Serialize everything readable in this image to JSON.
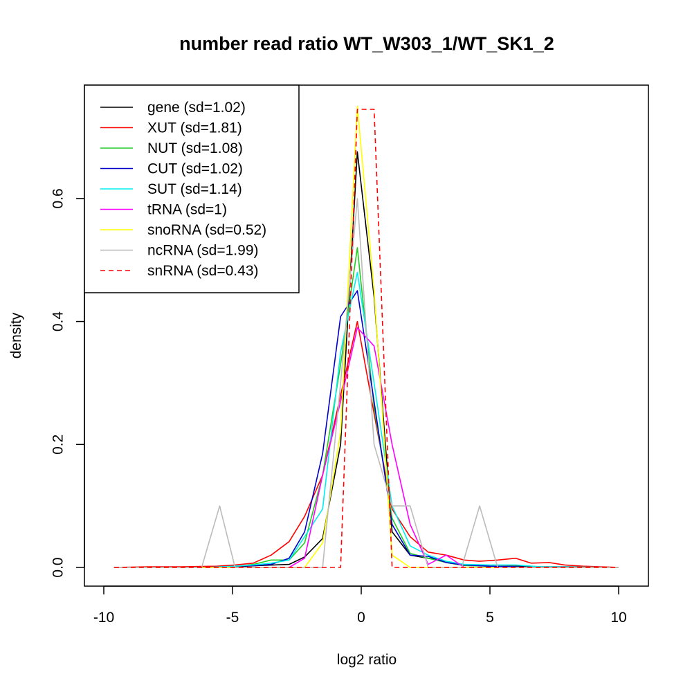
{
  "chart_data": {
    "type": "line",
    "title": "number read ratio WT_W303_1/WT_SK1_2",
    "xlabel": "log2 ratio",
    "ylabel": "density",
    "xlim": [
      -10,
      10
    ],
    "ylim": [
      0,
      0.7
    ],
    "xticks": [
      -10,
      -5,
      0,
      5,
      10
    ],
    "xtick_labels": [
      "-10",
      "-5",
      "0",
      "5",
      "10"
    ],
    "yticks": [
      0.0,
      0.2,
      0.4,
      0.6
    ],
    "ytick_labels": [
      "0.0",
      "0.2",
      "0.4",
      "0.6"
    ],
    "grid": false,
    "legend_position": "top-left",
    "series": [
      {
        "name": "gene (sd=1.02)",
        "color": "#000000",
        "dash": "solid",
        "x": [
          -9.6,
          -8,
          -6.4,
          -5,
          -4,
          -3.4,
          -2.8,
          -2.2,
          -1.5,
          -0.8,
          -0.15,
          0.5,
          1.2,
          1.9,
          2.6,
          3.3,
          4,
          5,
          6,
          7,
          8,
          10
        ],
        "y": [
          0,
          0,
          0,
          0.001,
          0.003,
          0.004,
          0.005,
          0.017,
          0.047,
          0.2,
          0.676,
          0.44,
          0.058,
          0.02,
          0.015,
          0.01,
          0.004,
          0.002,
          0.002,
          0.001,
          0.001,
          0
        ]
      },
      {
        "name": "XUT (sd=1.81)",
        "color": "#ff0000",
        "dash": "solid",
        "x": [
          -9.6,
          -8.3,
          -7,
          -5.6,
          -4.9,
          -4.2,
          -3.5,
          -2.8,
          -2.2,
          -1.5,
          -0.8,
          -0.15,
          0.5,
          1.2,
          1.9,
          2.6,
          3.3,
          4,
          4.6,
          5.3,
          6,
          6.6,
          7.3,
          7.9,
          8.6,
          10
        ],
        "y": [
          0,
          0.001,
          0.001,
          0.002,
          0.004,
          0.007,
          0.02,
          0.042,
          0.083,
          0.15,
          0.28,
          0.4,
          0.25,
          0.095,
          0.05,
          0.025,
          0.02,
          0.012,
          0.01,
          0.012,
          0.015,
          0.007,
          0.008,
          0.004,
          0.002,
          0
        ]
      },
      {
        "name": "NUT (sd=1.08)",
        "color": "#22cc22",
        "dash": "solid",
        "x": [
          -9.6,
          -6,
          -4.9,
          -4.2,
          -3.5,
          -2.8,
          -2.2,
          -1.5,
          -0.8,
          -0.15,
          0.5,
          1.2,
          1.9,
          2.6,
          3.3,
          4,
          5,
          6,
          7,
          10
        ],
        "y": [
          0,
          0,
          0.001,
          0.005,
          0.012,
          0.012,
          0.04,
          0.15,
          0.33,
          0.52,
          0.26,
          0.08,
          0.023,
          0.015,
          0.008,
          0.003,
          0.002,
          0.001,
          0,
          0
        ]
      },
      {
        "name": "CUT (sd=1.02)",
        "color": "#0000cc",
        "dash": "solid",
        "x": [
          -9.6,
          -6,
          -4.9,
          -4.2,
          -3.5,
          -2.8,
          -2.2,
          -1.5,
          -0.8,
          -0.15,
          0.5,
          1.2,
          1.9,
          2.6,
          3.3,
          4,
          5,
          6,
          7,
          10
        ],
        "y": [
          0,
          0,
          0.002,
          0.003,
          0.005,
          0.015,
          0.058,
          0.185,
          0.408,
          0.45,
          0.27,
          0.07,
          0.02,
          0.018,
          0.008,
          0.004,
          0.002,
          0.001,
          0,
          0
        ]
      },
      {
        "name": "SUT (sd=1.14)",
        "color": "#00eeee",
        "dash": "solid",
        "x": [
          -9.6,
          -6,
          -4.9,
          -4.2,
          -3.5,
          -2.8,
          -2.2,
          -1.5,
          -0.8,
          -0.15,
          0.5,
          1.2,
          1.9,
          2.6,
          3.3,
          4,
          5,
          6,
          7,
          10
        ],
        "y": [
          0,
          0,
          0.002,
          0.004,
          0.007,
          0.012,
          0.05,
          0.095,
          0.35,
          0.48,
          0.3,
          0.1,
          0.035,
          0.02,
          0.01,
          0.005,
          0.004,
          0.004,
          0.001,
          0
        ]
      },
      {
        "name": "tRNA (sd=1)",
        "color": "#ff00ff",
        "dash": "solid",
        "x": [
          -9.6,
          -6,
          -5,
          -4.2,
          -3.5,
          -2.8,
          -2.2,
          -1.5,
          -0.8,
          -0.15,
          0.5,
          1.2,
          1.9,
          2.6,
          3.3,
          4,
          5,
          6,
          7,
          10
        ],
        "y": [
          0,
          0,
          0,
          0,
          0,
          0,
          0.015,
          0.15,
          0.27,
          0.39,
          0.36,
          0.2,
          0.07,
          0.005,
          0.02,
          0,
          0,
          0,
          0,
          0
        ]
      },
      {
        "name": "snoRNA (sd=0.52)",
        "color": "#ffff00",
        "dash": "solid",
        "x": [
          -9.6,
          -3,
          -2.2,
          -1.5,
          -0.8,
          -0.15,
          0.5,
          1.2,
          1.9,
          2.6,
          10
        ],
        "y": [
          0,
          0,
          0,
          0.04,
          0.22,
          0.75,
          0.45,
          0.02,
          0,
          0,
          0
        ]
      },
      {
        "name": "ncRNA (sd=1.99)",
        "color": "#bbbbbb",
        "dash": "solid",
        "x": [
          -9.6,
          -6.2,
          -5.5,
          -4.9,
          -1.5,
          -0.8,
          -0.15,
          0.5,
          1.2,
          1.9,
          2.6,
          3.9,
          4.6,
          5.3,
          10
        ],
        "y": [
          0,
          0,
          0.1,
          0,
          0,
          0.3,
          0.6,
          0.2,
          0.1,
          0.1,
          0,
          0,
          0.1,
          0,
          0
        ]
      },
      {
        "name": "snRNA (sd=0.43)",
        "color": "#ff0000",
        "dash": "dashed",
        "x": [
          -9.6,
          -0.8,
          -0.15,
          0.5,
          1.2,
          10
        ],
        "y": [
          0,
          0,
          0.745,
          0.745,
          0,
          0
        ]
      }
    ]
  }
}
